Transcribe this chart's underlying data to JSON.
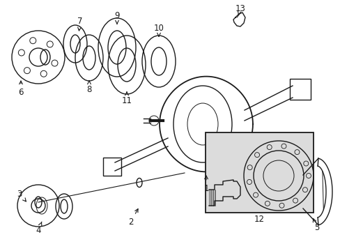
{
  "bg_color": "#ffffff",
  "line_color": "#1a1a1a",
  "fig_width": 4.89,
  "fig_height": 3.6,
  "inset_bg": "#dcdcdc"
}
